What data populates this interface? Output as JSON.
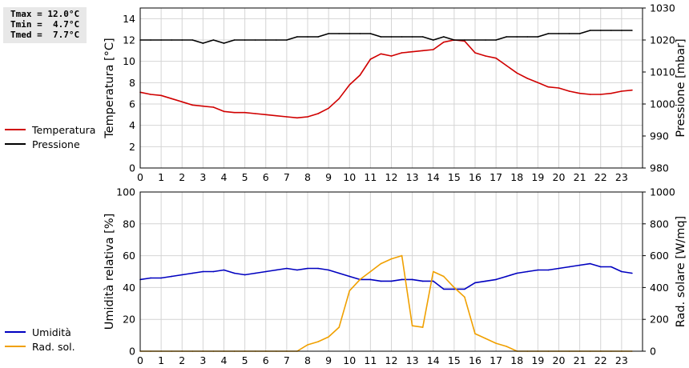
{
  "stats": {
    "tmax": "Tmax = 12.0°C",
    "tmin": "Tmin =  4.7°C",
    "tmed": "Tmed =  7.7°C"
  },
  "legend_top": [
    {
      "label": "Temperatura",
      "color": "#d00000"
    },
    {
      "label": "Pressione",
      "color": "#000000"
    }
  ],
  "legend_bottom": [
    {
      "label": "Umidità",
      "color": "#0000c0"
    },
    {
      "label": "Rad. sol.",
      "color": "#f0a000"
    }
  ],
  "chart_data": [
    {
      "type": "line",
      "xlim": [
        0,
        24
      ],
      "x_ticks": [
        0,
        1,
        2,
        3,
        4,
        5,
        6,
        7,
        8,
        9,
        10,
        11,
        12,
        13,
        14,
        15,
        16,
        17,
        18,
        19,
        20,
        21,
        22,
        23
      ],
      "ylabel": "Temperatura [°C]",
      "ylim": [
        0,
        15
      ],
      "y_ticks": [
        0,
        2,
        4,
        6,
        8,
        10,
        12,
        14
      ],
      "y2label": "Pressione [mbar]",
      "y2lim": [
        980,
        1030
      ],
      "y2_ticks": [
        980,
        990,
        1000,
        1010,
        1020,
        1030
      ],
      "grid": true,
      "series": [
        {
          "name": "Temperatura",
          "axis": "left",
          "color": "#d00000",
          "x": [
            0,
            0.5,
            1,
            1.5,
            2,
            2.5,
            3,
            3.5,
            4,
            4.5,
            5,
            5.5,
            6,
            6.5,
            7,
            7.5,
            8,
            8.5,
            9,
            9.5,
            10,
            10.5,
            11,
            11.5,
            12,
            12.5,
            13,
            13.5,
            14,
            14.5,
            15,
            15.5,
            16,
            16.5,
            17,
            17.5,
            18,
            18.5,
            19,
            19.5,
            20,
            20.5,
            21,
            21.5,
            22,
            22.5,
            23,
            23.5
          ],
          "values": [
            7.1,
            6.9,
            6.8,
            6.5,
            6.2,
            5.9,
            5.8,
            5.7,
            5.3,
            5.2,
            5.2,
            5.1,
            5.0,
            4.9,
            4.8,
            4.7,
            4.8,
            5.1,
            5.6,
            6.5,
            7.8,
            8.7,
            10.2,
            10.7,
            10.5,
            10.8,
            10.9,
            11.0,
            11.1,
            11.8,
            12.0,
            11.9,
            10.8,
            10.5,
            10.3,
            9.6,
            8.9,
            8.4,
            8.0,
            7.6,
            7.5,
            7.2,
            7.0,
            6.9,
            6.9,
            7.0,
            7.2,
            7.3
          ]
        },
        {
          "name": "Pressione",
          "axis": "right",
          "color": "#000000",
          "x": [
            0,
            0.5,
            1,
            1.5,
            2,
            2.5,
            3,
            3.5,
            4,
            4.5,
            5,
            5.5,
            6,
            6.5,
            7,
            7.5,
            8,
            8.5,
            9,
            9.5,
            10,
            10.5,
            11,
            11.5,
            12,
            12.5,
            13,
            13.5,
            14,
            14.5,
            15,
            15.5,
            16,
            16.5,
            17,
            17.5,
            18,
            18.5,
            19,
            19.5,
            20,
            20.5,
            21,
            21.5,
            22,
            22.5,
            23,
            23.5
          ],
          "values": [
            1020,
            1020,
            1020,
            1020,
            1020,
            1020,
            1019,
            1020,
            1019,
            1020,
            1020,
            1020,
            1020,
            1020,
            1020,
            1021,
            1021,
            1021,
            1022,
            1022,
            1022,
            1022,
            1022,
            1021,
            1021,
            1021,
            1021,
            1021,
            1020,
            1021,
            1020,
            1020,
            1020,
            1020,
            1020,
            1021,
            1021,
            1021,
            1021,
            1022,
            1022,
            1022,
            1022,
            1023,
            1023,
            1023,
            1023,
            1023
          ]
        }
      ]
    },
    {
      "type": "line",
      "xlim": [
        0,
        24
      ],
      "x_ticks": [
        0,
        1,
        2,
        3,
        4,
        5,
        6,
        7,
        8,
        9,
        10,
        11,
        12,
        13,
        14,
        15,
        16,
        17,
        18,
        19,
        20,
        21,
        22,
        23
      ],
      "ylabel": "Umidità relativa [%]",
      "ylim": [
        0,
        100
      ],
      "y_ticks": [
        0,
        20,
        40,
        60,
        80,
        100
      ],
      "y2label": "Rad. solare [W/mq]",
      "y2lim": [
        0,
        1000
      ],
      "y2_ticks": [
        0,
        200,
        400,
        600,
        800,
        1000
      ],
      "grid": true,
      "series": [
        {
          "name": "Umidità",
          "axis": "left",
          "color": "#0000c0",
          "x": [
            0,
            0.5,
            1,
            1.5,
            2,
            2.5,
            3,
            3.5,
            4,
            4.5,
            5,
            5.5,
            6,
            6.5,
            7,
            7.5,
            8,
            8.5,
            9,
            9.5,
            10,
            10.5,
            11,
            11.5,
            12,
            12.5,
            13,
            13.5,
            14,
            14.5,
            15,
            15.5,
            16,
            16.5,
            17,
            17.5,
            18,
            18.5,
            19,
            19.5,
            20,
            20.5,
            21,
            21.5,
            22,
            22.5,
            23,
            23.5
          ],
          "values": [
            45,
            46,
            46,
            47,
            48,
            49,
            50,
            50,
            51,
            49,
            48,
            49,
            50,
            51,
            52,
            51,
            52,
            52,
            51,
            49,
            47,
            45,
            45,
            44,
            44,
            45,
            45,
            44,
            44,
            39,
            39,
            39,
            43,
            44,
            45,
            47,
            49,
            50,
            51,
            51,
            52,
            53,
            54,
            55,
            53,
            53,
            50,
            49
          ]
        },
        {
          "name": "Rad. sol.",
          "axis": "right",
          "color": "#f0a000",
          "x": [
            0,
            0.5,
            1,
            1.5,
            2,
            2.5,
            3,
            3.5,
            4,
            4.5,
            5,
            5.5,
            6,
            6.5,
            7,
            7.5,
            8,
            8.5,
            9,
            9.5,
            10,
            10.5,
            11,
            11.5,
            12,
            12.5,
            13,
            13.5,
            14,
            14.5,
            15,
            15.5,
            16,
            16.5,
            17,
            17.5,
            18,
            18.5,
            19,
            19.5,
            20,
            20.5,
            21,
            21.5,
            22,
            22.5,
            23,
            23.5
          ],
          "values": [
            0,
            0,
            0,
            0,
            0,
            0,
            0,
            0,
            0,
            0,
            0,
            0,
            0,
            0,
            0,
            0,
            40,
            60,
            90,
            150,
            380,
            450,
            500,
            550,
            580,
            600,
            160,
            150,
            500,
            470,
            400,
            340,
            110,
            80,
            50,
            30,
            0,
            0,
            0,
            0,
            0,
            0,
            0,
            0,
            0,
            0,
            0,
            0
          ]
        }
      ]
    }
  ]
}
